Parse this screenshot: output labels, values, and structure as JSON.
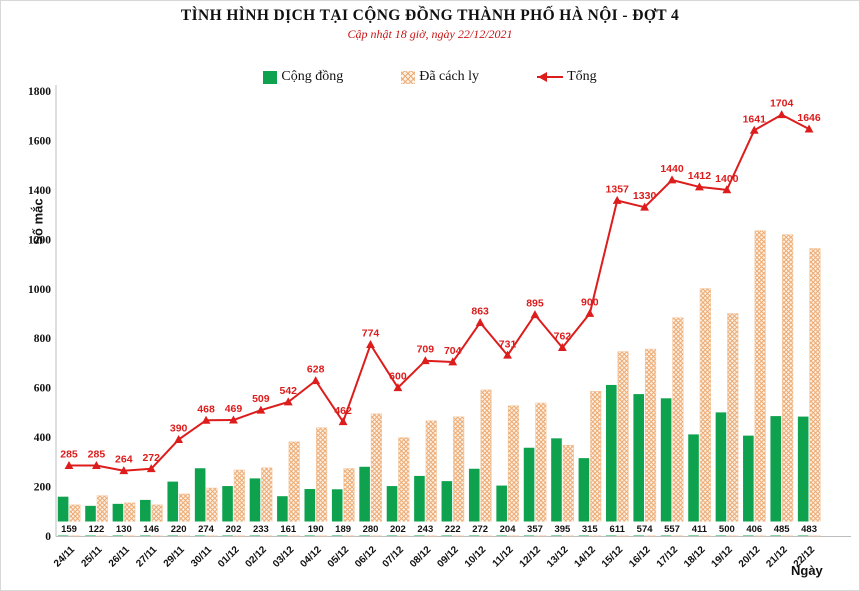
{
  "page": {
    "title": "TÌNH HÌNH DỊCH TẠI CỘNG ĐỒNG THÀNH PHỐ HÀ NỘI - ĐỢT 4",
    "subtitle": "Cập nhật 18 giờ, ngày 22/12/2021"
  },
  "chart_data": {
    "type": "bar+line",
    "title": "TÌNH HÌNH DỊCH TẠI CỘNG ĐỒNG THÀNH PHỐ HÀ NỘI - ĐỢT 4",
    "subtitle": "Cập nhật 18 giờ, ngày 22/12/2021",
    "xlabel": "Ngày",
    "ylabel": "Số mắc",
    "ylim": [
      0,
      1800
    ],
    "yticks": [
      0,
      200,
      400,
      600,
      800,
      1000,
      1200,
      1400,
      1600,
      1800
    ],
    "grid": false,
    "legend_position": "top",
    "categories": [
      "24/11",
      "25/11",
      "26/11",
      "27/11",
      "29/11",
      "30/11",
      "01/12",
      "02/12",
      "03/12",
      "04/12",
      "05/12",
      "06/12",
      "07/12",
      "08/12",
      "09/12",
      "10/12",
      "11/12",
      "12/12",
      "13/12",
      "14/12",
      "15/12",
      "16/12",
      "17/12",
      "18/12",
      "19/12",
      "20/12",
      "21/12",
      "22/12"
    ],
    "series": [
      {
        "name": "Cộng đồng",
        "type": "bar",
        "style": "solid",
        "color": "#0ea24e",
        "values_labeled": true,
        "values": [
          159,
          122,
          130,
          146,
          220,
          274,
          202,
          233,
          161,
          190,
          189,
          280,
          202,
          243,
          222,
          272,
          204,
          357,
          395,
          315,
          611,
          574,
          557,
          411,
          500,
          406,
          485,
          483
        ]
      },
      {
        "name": "Đã cách ly",
        "type": "bar",
        "style": "hatched",
        "color": "#edaa72",
        "values_labeled": false,
        "values": [
          126,
          163,
          134,
          126,
          170,
          194,
          267,
          276,
          381,
          438,
          273,
          494,
          398,
          466,
          482,
          591,
          527,
          538,
          367,
          585,
          746,
          756,
          883,
          1001,
          900,
          1235,
          1219,
          1163
        ]
      },
      {
        "name": "Tổng",
        "type": "line",
        "marker": "triangle-up",
        "color": "#dd1c1c",
        "values_labeled": true,
        "values": [
          285,
          285,
          264,
          272,
          390,
          468,
          469,
          509,
          542,
          628,
          462,
          774,
          600,
          709,
          704,
          863,
          731,
          895,
          762,
          900,
          1357,
          1330,
          1440,
          1412,
          1400,
          1641,
          1704,
          1646
        ]
      }
    ]
  },
  "colors": {
    "community_green": "#0ea24e",
    "hatch_orange": "#edaa72",
    "hatch_bg": "#fdf1e5",
    "total_red": "#dd1c1c",
    "subtitle_red": "#c81414",
    "axis_gray": "#bdbdbd",
    "text_black": "#111111"
  }
}
